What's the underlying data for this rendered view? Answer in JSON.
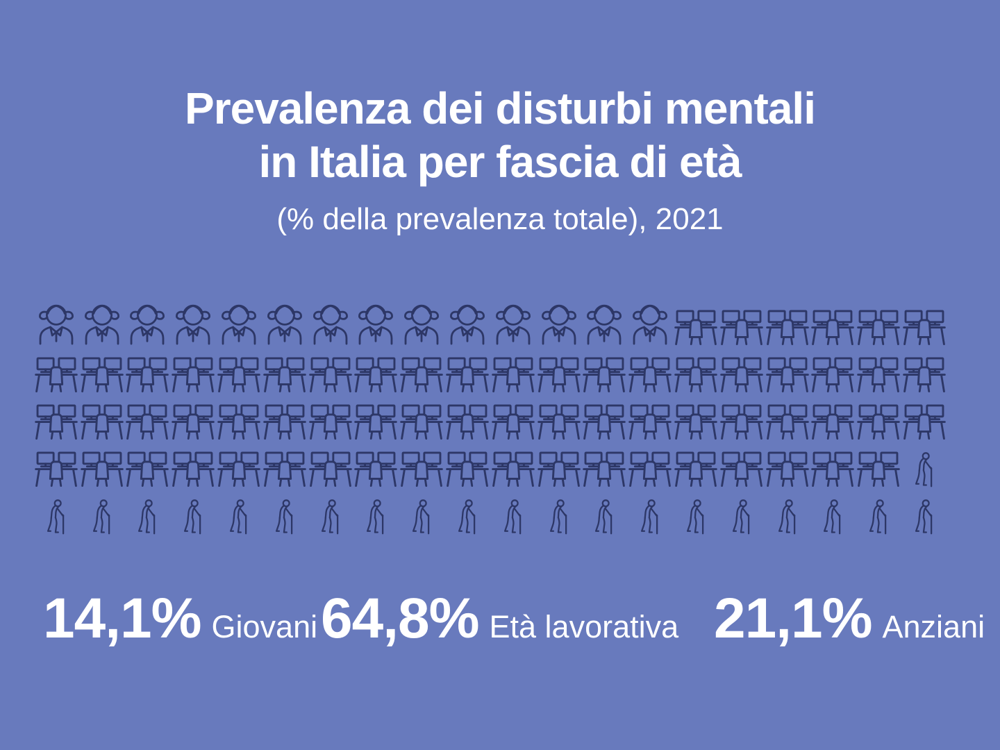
{
  "theme": {
    "background_color": "#687abd",
    "icon_color": "#2d3767",
    "text_color": "#ffffff"
  },
  "header": {
    "title_line1": "Prevalenza dei disturbi mentali",
    "title_line2": "in Italia per fascia di età",
    "subtitle": "(% della prevalenza totale), 2021"
  },
  "chart_data": {
    "type": "pictogram",
    "title": "Prevalenza dei disturbi mentali in Italia per fascia di età",
    "subtitle": "(% della prevalenza totale), 2021",
    "icons_per_row": 20,
    "rows": 5,
    "total_icons": 100,
    "categories": [
      {
        "label": "Giovani",
        "value": 14.1,
        "value_label": "14,1%",
        "icon": "girl-icon",
        "icon_count": 14
      },
      {
        "label": "Età lavorativa",
        "value": 64.8,
        "value_label": "64,8%",
        "icon": "desk-icon",
        "icon_count": 65
      },
      {
        "label": "Anziani",
        "value": 21.1,
        "value_label": "21,1%",
        "icon": "elderly-icon",
        "icon_count": 21
      }
    ]
  }
}
